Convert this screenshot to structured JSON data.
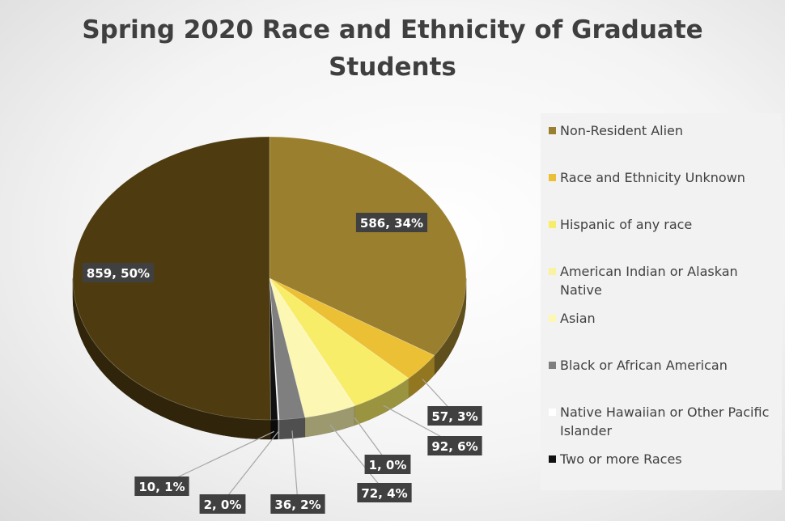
{
  "chart_data": {
    "type": "pie",
    "title": "Spring 2020 Race and Ethnicity of Graduate Students",
    "legend_position": "right",
    "slices": [
      {
        "name": "Non-Resident Alien",
        "value": 586,
        "label": "586, 34%",
        "color": "#9a7f2e"
      },
      {
        "name": "Race and Ethnicity Unknown",
        "value": 57,
        "label": "57, 3%",
        "color": "#ebc034"
      },
      {
        "name": "Hispanic of any race",
        "value": 92,
        "label": "92, 6%",
        "color": "#f8ed68"
      },
      {
        "name": "American Indian or Alaskan Native",
        "value": 1,
        "label": "1, 0%",
        "color": "#faf2a0"
      },
      {
        "name": "Asian",
        "value": 72,
        "label": "72, 4%",
        "color": "#fcf7b2"
      },
      {
        "name": "Black or African American",
        "value": 36,
        "label": "36, 2%",
        "color": "#7f7f7f"
      },
      {
        "name": "Native Hawaiian or Other Pacific Islander",
        "value": 2,
        "label": "2, 0%",
        "color": "#ffffff"
      },
      {
        "name": "Two or more Races",
        "value": 10,
        "label": "10, 1%",
        "color": "#111111"
      },
      {
        "name": "",
        "value": 859,
        "label": "859, 50%",
        "color": "#4e3c10"
      }
    ]
  },
  "legend": {
    "items": [
      {
        "label": "Non-Resident Alien",
        "color": "#9a7f2e"
      },
      {
        "label": "Race and Ethnicity Unknown",
        "color": "#ebc034"
      },
      {
        "label": "Hispanic of any race",
        "color": "#f8ed68"
      },
      {
        "label": "American Indian or Alaskan Native",
        "color": "#faf2a0"
      },
      {
        "label": "Asian",
        "color": "#fcf7b2"
      },
      {
        "label": "Black or African American",
        "color": "#7f7f7f"
      },
      {
        "label": "Native Hawaiian or Other Pacific Islander",
        "color": "#ffffff"
      },
      {
        "label": "Two or more Races",
        "color": "#111111"
      }
    ]
  }
}
